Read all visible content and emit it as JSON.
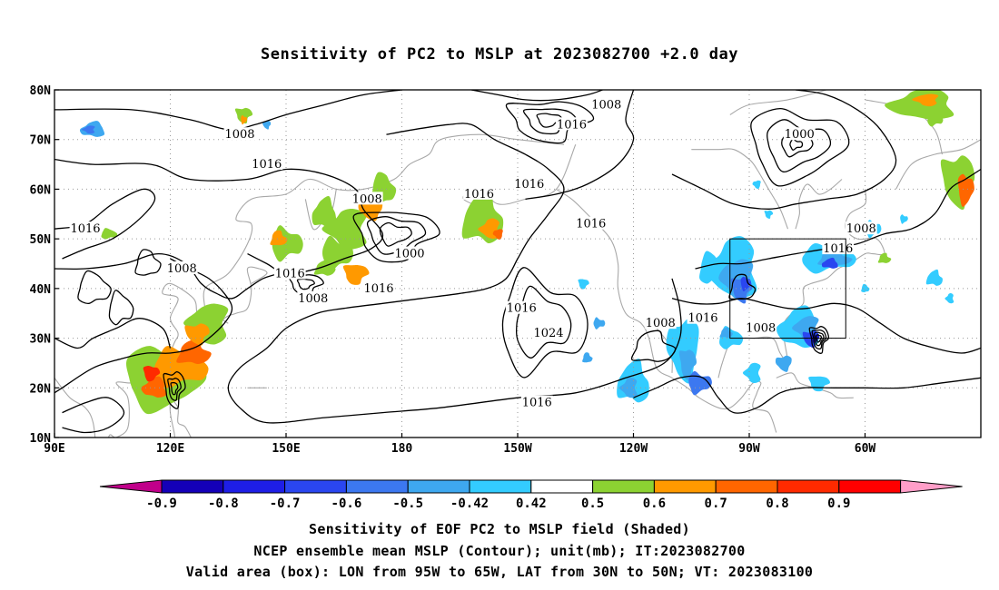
{
  "title": "Sensitivity of PC2 to MSLP at 2023082700 +2.0 day",
  "captions": [
    "Sensitivity of EOF PC2 to MSLP field (Shaded)",
    "NCEP ensemble mean MSLP (Contour); unit(mb); IT:2023082700",
    "Valid area (box): LON from 95W to 65W, LAT from 30N to 50N; VT: 2023083100"
  ],
  "map": {
    "lat_labels": [
      "80N",
      "70N",
      "60N",
      "50N",
      "40N",
      "30N",
      "20N",
      "10N"
    ],
    "lon_labels": [
      "90E",
      "120E",
      "150E",
      "180",
      "150W",
      "120W",
      "90W",
      "60W"
    ],
    "lat_range": [
      10,
      80
    ],
    "lon_range_east": [
      90,
      330
    ],
    "valid_box": {
      "lon_w": -95,
      "lon_e": -65,
      "lat_s": 30,
      "lat_n": 50
    },
    "contour_labels": [
      {
        "text": "1008",
        "lon": -127,
        "lat": 77
      },
      {
        "text": "1008",
        "lon": 138,
        "lat": 71
      },
      {
        "text": "1016",
        "lon": -136,
        "lat": 73
      },
      {
        "text": "1016",
        "lon": 145,
        "lat": 65
      },
      {
        "text": "1000",
        "lon": -77,
        "lat": 71
      },
      {
        "text": "1008",
        "lon": 171,
        "lat": 58
      },
      {
        "text": "1016",
        "lon": -160,
        "lat": 59
      },
      {
        "text": "1016",
        "lon": -147,
        "lat": 61
      },
      {
        "text": "1016",
        "lon": -131,
        "lat": 53
      },
      {
        "text": "1008",
        "lon": -61,
        "lat": 52
      },
      {
        "text": "1016",
        "lon": 98,
        "lat": 52
      },
      {
        "text": "1000",
        "lon": -178,
        "lat": 47
      },
      {
        "text": "1016",
        "lon": -67,
        "lat": 48
      },
      {
        "text": "1008",
        "lon": 123,
        "lat": 44
      },
      {
        "text": "1016",
        "lon": 151,
        "lat": 43
      },
      {
        "text": "1008",
        "lon": 157,
        "lat": 38
      },
      {
        "text": "1016",
        "lon": 174,
        "lat": 40
      },
      {
        "text": "1016",
        "lon": -149,
        "lat": 36
      },
      {
        "text": "1016",
        "lon": -102,
        "lat": 34
      },
      {
        "text": "1008",
        "lon": -113,
        "lat": 33
      },
      {
        "text": "1008",
        "lon": -87,
        "lat": 32
      },
      {
        "text": "1024",
        "lon": -142,
        "lat": 31
      },
      {
        "text": "1016",
        "lon": -145,
        "lat": 17
      }
    ]
  },
  "colorbar": {
    "labels": [
      "-0.9",
      "-0.8",
      "-0.7",
      "-0.6",
      "-0.5",
      "-0.42",
      "0.42",
      "0.5",
      "0.6",
      "0.7",
      "0.8",
      "0.9"
    ],
    "colors": [
      "#1400b8",
      "#1e1ee6",
      "#2a46f0",
      "#3c78f0",
      "#3ea8f0",
      "#33ccff",
      "#ffffff",
      "#8cd232",
      "#ff9900",
      "#ff6600",
      "#ff2a00",
      "#ff0000"
    ],
    "end_low_color": "#c0008a",
    "end_high_color": "#ff9ec8"
  }
}
